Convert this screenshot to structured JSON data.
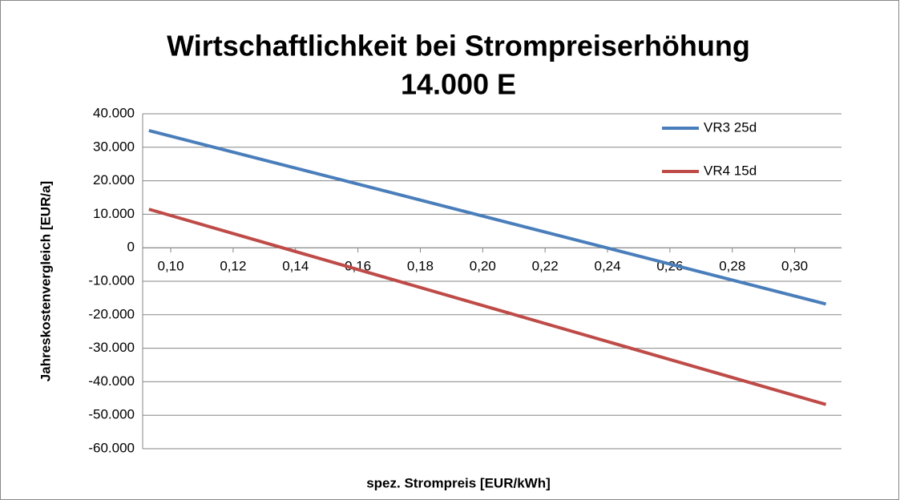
{
  "chart_data": {
    "type": "line",
    "title": "Wirtschaftlichkeit bei Strompreiserhöhung",
    "subtitle": "14.000 E",
    "x_label": "spez. Strompreis [EUR/kWh]",
    "y_label": "Jahreskostenvergleich [EUR/a]",
    "xlim": [
      0.091,
      0.315
    ],
    "xticks": [
      {
        "value": 0.1,
        "label": "0,10"
      },
      {
        "value": 0.12,
        "label": "0,12"
      },
      {
        "value": 0.14,
        "label": "0,14"
      },
      {
        "value": 0.16,
        "label": "0,16"
      },
      {
        "value": 0.18,
        "label": "0,18"
      },
      {
        "value": 0.2,
        "label": "0,20"
      },
      {
        "value": 0.22,
        "label": "0,22"
      },
      {
        "value": 0.24,
        "label": "0,24"
      },
      {
        "value": 0.26,
        "label": "0,26"
      },
      {
        "value": 0.28,
        "label": "0,28"
      },
      {
        "value": 0.3,
        "label": "0,30"
      }
    ],
    "ylim": [
      -60000,
      40000
    ],
    "yticks": [
      {
        "value": 40000,
        "label": "40.000"
      },
      {
        "value": 30000,
        "label": "30.000"
      },
      {
        "value": 20000,
        "label": "20.000"
      },
      {
        "value": 10000,
        "label": "10.000"
      },
      0,
      {
        "value": -10000,
        "label": "-10.000"
      },
      {
        "value": -20000,
        "label": "-20.000"
      },
      {
        "value": -30000,
        "label": "-30.000"
      },
      {
        "value": -40000,
        "label": "-40.000"
      },
      {
        "value": -50000,
        "label": "-50.000"
      },
      {
        "value": -60000,
        "label": "-60.000"
      }
    ],
    "grid": true,
    "legend": "top-right",
    "x": [
      0.093,
      0.31
    ],
    "series": [
      {
        "name": "VR3 25d",
        "color": "#4a7ebb",
        "values": [
          35000,
          -16800
        ]
      },
      {
        "name": "VR4 15d",
        "color": "#be4b48",
        "values": [
          11500,
          -46800
        ]
      }
    ]
  }
}
